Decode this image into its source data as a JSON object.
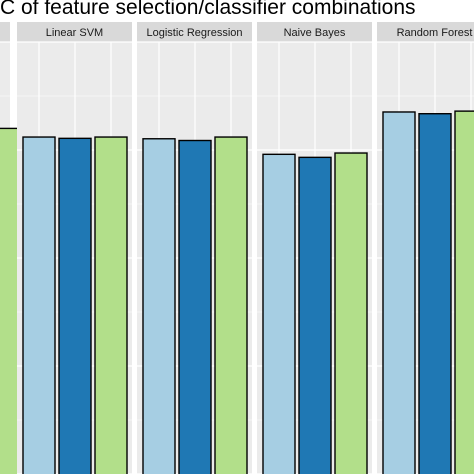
{
  "chart_data": {
    "type": "bar",
    "title": "AUC of feature selection/classifier combinations",
    "title_visible": "C of feature selection/classifier combinations",
    "xlabel": "",
    "ylabel": "",
    "ylim": [
      0,
      1
    ],
    "grid": true,
    "colors": [
      "#a6cee3",
      "#1f78b4",
      "#b2df8a"
    ],
    "panels": [
      {
        "name": "",
        "values": [
          null,
          null,
          0.8
        ]
      },
      {
        "name": "Linear SVM",
        "values": [
          0.78,
          0.777,
          0.78
        ]
      },
      {
        "name": "Logistic Regression",
        "values": [
          0.776,
          0.772,
          0.78
        ]
      },
      {
        "name": "Naive Bayes",
        "values": [
          0.74,
          0.733,
          0.743
        ]
      },
      {
        "name": "Random Forest",
        "values": [
          0.838,
          0.834,
          0.84
        ]
      }
    ]
  }
}
